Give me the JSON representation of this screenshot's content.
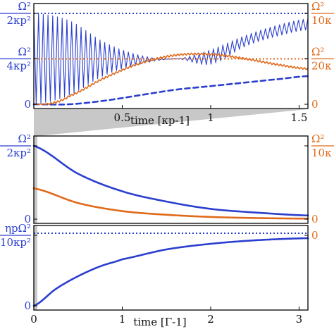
{
  "colors": {
    "blue": "#2b3fcf",
    "orange": "#e06a1b",
    "grid": "#000000",
    "zoom_fill": "#c8c8c8"
  },
  "chart_data": [
    {
      "type": "line",
      "panel": "top",
      "xlabel": "time [κp-1]",
      "xlim": [
        0,
        1.55
      ],
      "xticks": [
        "0.5",
        "1",
        "1.5"
      ],
      "xtick_values": [
        0.5,
        1.0,
        1.5
      ],
      "left_ylim": [
        0,
        0.5
      ],
      "left_yticks": [
        {
          "value": 0,
          "num": "0",
          "den": ""
        },
        {
          "value": 0.25,
          "num": "Ω²",
          "den": "4κp²"
        },
        {
          "value": 0.5,
          "num": "Ω²",
          "den": "2κp²"
        }
      ],
      "right_ylim": [
        0,
        0.1
      ],
      "right_yticks": [
        {
          "value": 0,
          "num": "0",
          "den": ""
        },
        {
          "value": 0.05,
          "num": "Ω²",
          "den": "20κ"
        },
        {
          "value": 0.1,
          "num": "Ω²",
          "den": "10κ"
        }
      ],
      "series": [
        {
          "axis": "left",
          "style": "solid-oscillating",
          "x": [
            0,
            0.2,
            0.4,
            0.6,
            0.8,
            1.0,
            1.2,
            1.4,
            1.55
          ],
          "upper": [
            0.5,
            0.46,
            0.34,
            0.27,
            0.25,
            0.3,
            0.38,
            0.44,
            0.47
          ],
          "lower": [
            0.0,
            0.05,
            0.16,
            0.22,
            0.25,
            0.22,
            0.32,
            0.38,
            0.41
          ]
        },
        {
          "axis": "left",
          "style": "dashed",
          "x": [
            0,
            0.2,
            0.4,
            0.6,
            0.8,
            1.0,
            1.2,
            1.4,
            1.55
          ],
          "y": [
            0.0,
            0.0,
            0.02,
            0.05,
            0.08,
            0.1,
            0.12,
            0.14,
            0.155
          ]
        },
        {
          "axis": "left",
          "style": "dotted",
          "x": [
            0,
            1.55
          ],
          "y": [
            0.5,
            0.5
          ]
        },
        {
          "axis": "right",
          "style": "solid-oscillating",
          "x": [
            0,
            0.1,
            0.2,
            0.4,
            0.6,
            0.8,
            1.0,
            1.2,
            1.4,
            1.55
          ],
          "upper": [
            0.0,
            0.002,
            0.01,
            0.03,
            0.046,
            0.055,
            0.056,
            0.051,
            0.044,
            0.04
          ],
          "lower": [
            0.0,
            0.0,
            0.008,
            0.028,
            0.044,
            0.053,
            0.054,
            0.049,
            0.042,
            0.038
          ]
        },
        {
          "axis": "right",
          "style": "dotted",
          "x": [
            0,
            1.55
          ],
          "y": [
            0.05,
            0.05
          ]
        }
      ]
    },
    {
      "type": "line",
      "panel": "middle",
      "xlim": [
        0,
        3.1
      ],
      "left_ylim": [
        0,
        0.5
      ],
      "left_yticks": [
        {
          "value": 0,
          "num": "0",
          "den": ""
        },
        {
          "value": 0.5,
          "num": "Ω²",
          "den": "2κp²"
        }
      ],
      "right_ylim": [
        0,
        0.1
      ],
      "right_yticks": [
        {
          "value": 0,
          "num": "0",
          "den": ""
        },
        {
          "value": 0.1,
          "num": "Ω²",
          "den": "10κ"
        }
      ],
      "series": [
        {
          "axis": "left",
          "style": "solid",
          "x": [
            0,
            0.5,
            1.0,
            1.5,
            2.0,
            2.5,
            3.1
          ],
          "y": [
            0.5,
            0.31,
            0.19,
            0.12,
            0.07,
            0.045,
            0.025
          ]
        },
        {
          "axis": "right",
          "style": "solid",
          "x": [
            0,
            0.5,
            1.0,
            1.5,
            2.0,
            2.5,
            3.1
          ],
          "y": [
            0.042,
            0.022,
            0.011,
            0.006,
            0.003,
            0.0015,
            0.0007
          ]
        }
      ]
    },
    {
      "type": "line",
      "panel": "bottom",
      "xlabel": "time [Γ-1]",
      "xlim": [
        0,
        3.1
      ],
      "xticks": [
        "0",
        "1",
        "2",
        "3"
      ],
      "xtick_values": [
        0,
        1,
        2,
        3
      ],
      "left_ylim": [
        0,
        1.0
      ],
      "left_yticks": [
        {
          "value": 0,
          "num": "0",
          "den": ""
        },
        {
          "value": 1.0,
          "num": "ηpΩ²",
          "den": "10κp²"
        }
      ],
      "right_yticks": [
        {
          "value": 1.0,
          "num": "0",
          "den": ""
        }
      ],
      "series": [
        {
          "axis": "left",
          "style": "solid",
          "x": [
            0,
            0.25,
            0.5,
            0.75,
            1.0,
            1.5,
            2.0,
            2.5,
            3.1
          ],
          "y": [
            0.0,
            0.24,
            0.42,
            0.56,
            0.66,
            0.8,
            0.88,
            0.93,
            0.96
          ]
        },
        {
          "axis": "left",
          "style": "dotted",
          "x": [
            0,
            3.1
          ],
          "y": [
            1.03,
            1.03
          ]
        }
      ]
    }
  ]
}
